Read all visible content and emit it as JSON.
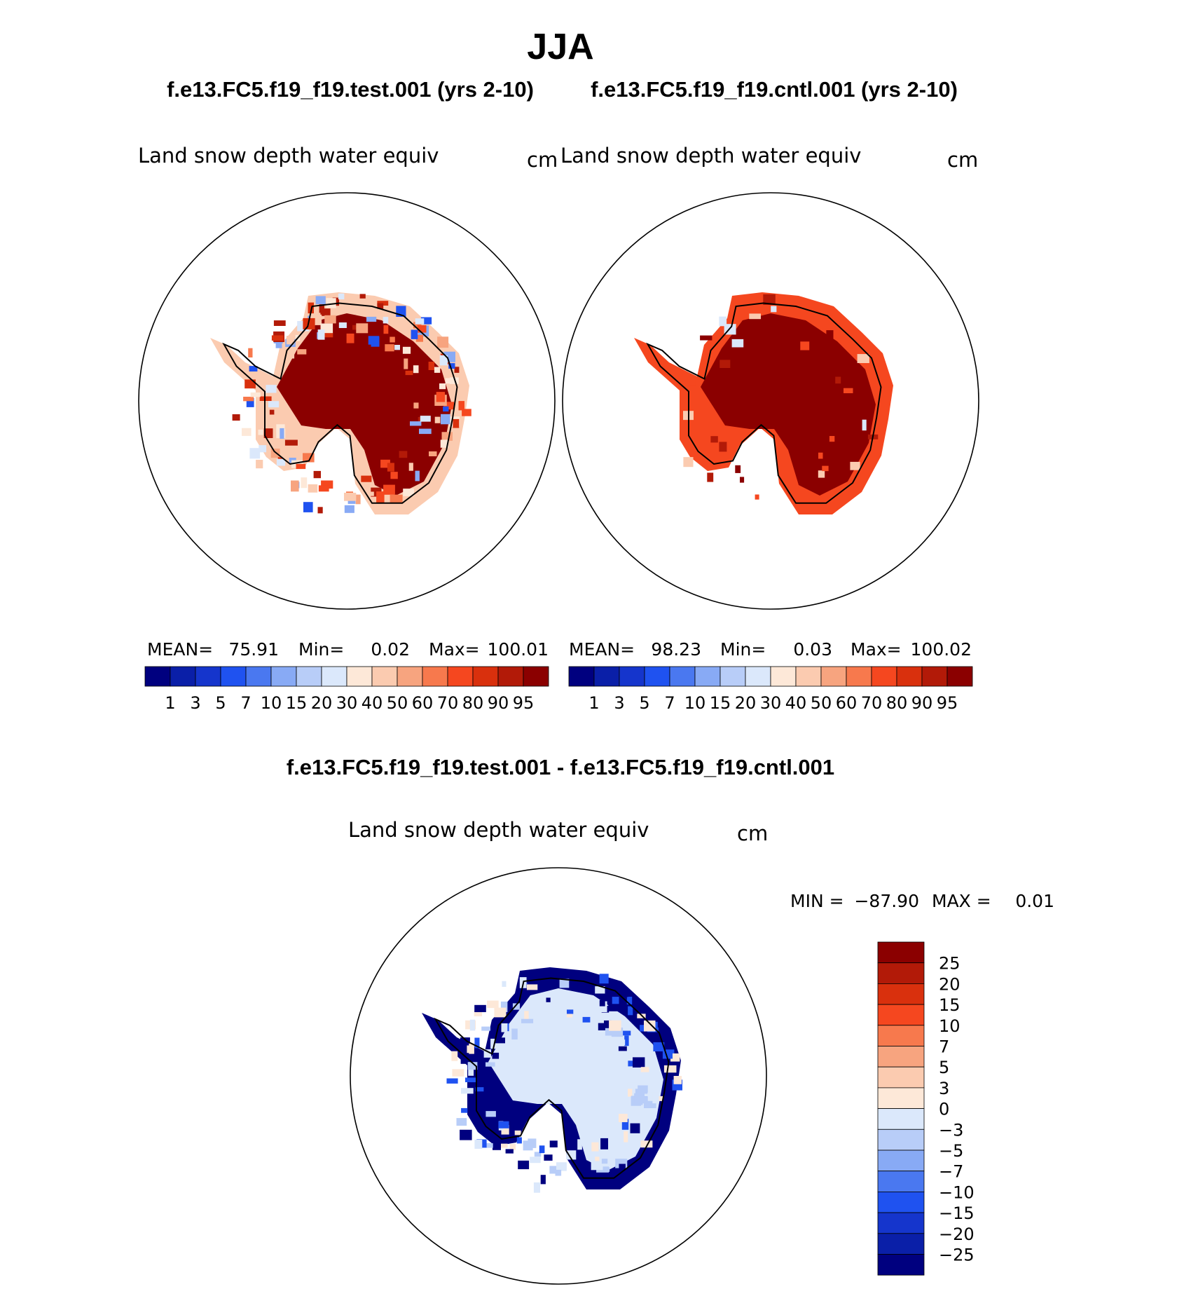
{
  "figure": {
    "season_title": "JJA",
    "case_titles": {
      "test": "f.e13.FC5.f19_f19.test.001 (yrs 2-10)",
      "cntl": "f.e13.FC5.f19_f19.cntl.001 (yrs 2-10)",
      "diff": "f.e13.FC5.f19_f19.test.001 - f.e13.FC5.f19_f19.cntl.001"
    }
  },
  "chart_data": [
    {
      "type": "map",
      "projection": "south polar stereographic",
      "panel": "test",
      "variable": "Land snow depth water equiv",
      "units": "cm",
      "stats": {
        "mean_label": "MEAN=",
        "mean": "75.91",
        "min_label": "Min=",
        "min": "0.02",
        "max_label": "Max=",
        "max": "100.01"
      },
      "colorbar": {
        "levels": [
          "1",
          "3",
          "5",
          "7",
          "10",
          "15",
          "20",
          "30",
          "40",
          "50",
          "60",
          "70",
          "80",
          "90",
          "95"
        ],
        "colors": [
          "#00007f",
          "#0a1fa8",
          "#1535cc",
          "#1f52f0",
          "#4a78f0",
          "#88aaf5",
          "#b8cdf8",
          "#dbe8fb",
          "#fde8d8",
          "#fbcbb0",
          "#f7a47f",
          "#f7794d",
          "#f5471f",
          "#d9300d",
          "#b21a08",
          "#8b0000"
        ]
      },
      "region_colors": {
        "interior": "#8b0000",
        "ring_mixed": [
          "#b21a08",
          "#d9300d",
          "#f5471f",
          "#f7794d",
          "#f7a47f",
          "#fbcbb0",
          "#fde8d8",
          "#dbe8fb",
          "#88aaf5",
          "#1f52f0"
        ]
      }
    },
    {
      "type": "map",
      "projection": "south polar stereographic",
      "panel": "cntl",
      "variable": "Land snow depth water equiv",
      "units": "cm",
      "stats": {
        "mean_label": "MEAN=",
        "mean": "98.23",
        "min_label": "Min=",
        "min": "0.03",
        "max_label": "Max=",
        "max": "100.02"
      },
      "colorbar": {
        "levels": [
          "1",
          "3",
          "5",
          "7",
          "10",
          "15",
          "20",
          "30",
          "40",
          "50",
          "60",
          "70",
          "80",
          "90",
          "95"
        ],
        "colors": [
          "#00007f",
          "#0a1fa8",
          "#1535cc",
          "#1f52f0",
          "#4a78f0",
          "#88aaf5",
          "#b8cdf8",
          "#dbe8fb",
          "#fde8d8",
          "#fbcbb0",
          "#f7a47f",
          "#f7794d",
          "#f5471f",
          "#d9300d",
          "#b21a08",
          "#8b0000"
        ]
      },
      "region_colors": {
        "interior": "#8b0000",
        "ring_mixed": [
          "#8b0000",
          "#b21a08",
          "#f5471f",
          "#fbcbb0",
          "#dbe8fb"
        ]
      }
    },
    {
      "type": "map",
      "projection": "south polar stereographic",
      "panel": "diff",
      "variable": "Land snow depth water equiv",
      "units": "cm",
      "stats": {
        "min_label": "MIN =",
        "min": "−87.90",
        "max_label": "MAX =",
        "max": "0.01"
      },
      "colorbar": {
        "orientation": "vertical",
        "levels": [
          "25",
          "20",
          "15",
          "10",
          "7",
          "5",
          "3",
          "0",
          "−3",
          "−5",
          "−7",
          "−10",
          "−15",
          "−20",
          "−25"
        ],
        "colors": [
          "#8b0000",
          "#b21a08",
          "#d9300d",
          "#f5471f",
          "#f7794d",
          "#f7a47f",
          "#fbcbb0",
          "#fde8d8",
          "#dbe8fb",
          "#b8cdf8",
          "#88aaf5",
          "#4a78f0",
          "#1f52f0",
          "#1535cc",
          "#0a1fa8",
          "#00007f"
        ]
      },
      "region_colors": {
        "interior": "#dbe8fb",
        "ring_mixed": [
          "#fde8d8",
          "#dbe8fb",
          "#b8cdf8",
          "#1f52f0",
          "#00007f"
        ],
        "coast": "#00007f"
      }
    }
  ]
}
